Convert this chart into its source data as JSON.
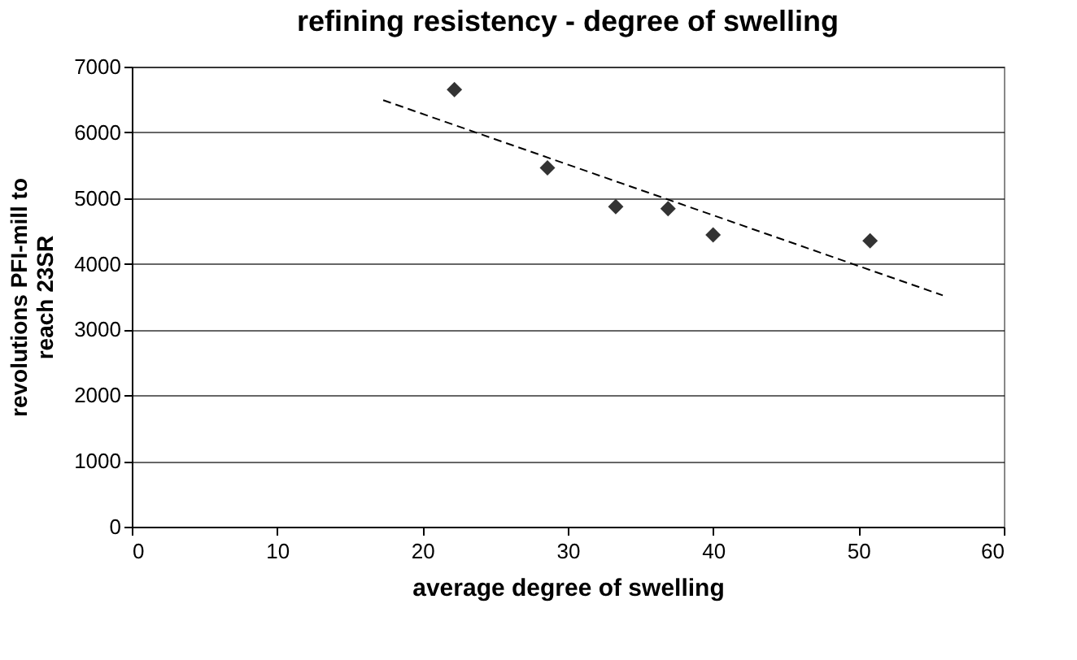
{
  "chart_data": {
    "type": "scatter",
    "title": "refining resistency - degree of swelling",
    "xlabel": "average degree of swelling",
    "ylabel": "revolutions PFI-mill to reach 23SR",
    "series": [
      {
        "color": "#333333",
        "marker": "diamond",
        "x": [
          22.2,
          28.6,
          33.3,
          36.9,
          40.0,
          50.8
        ],
        "values": [
          6650,
          5460,
          4870,
          4840,
          4440,
          4350
        ]
      },
      {
        "type": "line",
        "color": "#000000",
        "line_style": "dashed",
        "x": [
          17.3,
          55.8
        ],
        "values": [
          6490,
          3520
        ]
      }
    ],
    "xlim": [
      0,
      60
    ],
    "xticks": [
      0,
      10,
      20,
      30,
      40,
      50,
      60
    ],
    "ylim": [
      0,
      7000
    ],
    "yticks": [
      0,
      1000,
      2000,
      3000,
      4000,
      5000,
      6000,
      7000
    ],
    "grid": "y"
  }
}
